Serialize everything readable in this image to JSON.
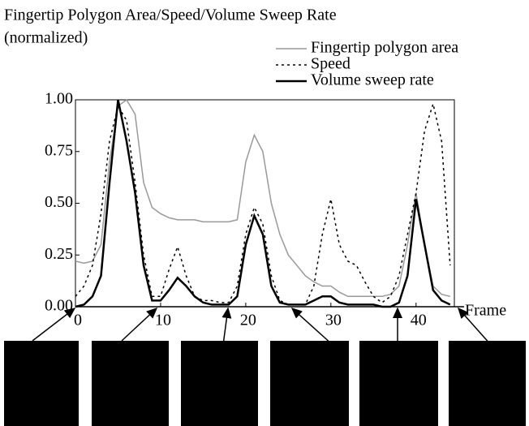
{
  "chart_data": {
    "type": "line",
    "title": "Fingertip Polygon Area/Speed/Volume Sweep Rate",
    "subtitle": "(normalized)",
    "x_label": "Frame",
    "x": [
      0,
      1,
      2,
      3,
      4,
      5,
      6,
      7,
      8,
      9,
      10,
      11,
      12,
      13,
      14,
      15,
      16,
      17,
      18,
      19,
      20,
      21,
      22,
      23,
      24,
      25,
      26,
      27,
      28,
      29,
      30,
      31,
      32,
      33,
      34,
      35,
      36,
      37,
      38,
      39,
      40,
      41,
      42,
      43,
      44
    ],
    "series": [
      {
        "name": "Fingertip polygon area",
        "color": "#999999",
        "style": "solid",
        "values": [
          0.22,
          0.21,
          0.22,
          0.3,
          0.7,
          0.97,
          1.0,
          0.93,
          0.6,
          0.48,
          0.45,
          0.43,
          0.42,
          0.42,
          0.42,
          0.41,
          0.41,
          0.41,
          0.41,
          0.42,
          0.7,
          0.83,
          0.75,
          0.5,
          0.35,
          0.25,
          0.2,
          0.15,
          0.12,
          0.1,
          0.1,
          0.07,
          0.05,
          0.05,
          0.05,
          0.05,
          0.05,
          0.06,
          0.1,
          0.3,
          0.55,
          0.3,
          0.1,
          0.06,
          0.05
        ]
      },
      {
        "name": "Speed",
        "color": "#000000",
        "style": "dotted",
        "values": [
          0.05,
          0.1,
          0.2,
          0.45,
          0.8,
          0.97,
          0.9,
          0.6,
          0.25,
          0.05,
          0.05,
          0.18,
          0.29,
          0.15,
          0.05,
          0.03,
          0.03,
          0.02,
          0.02,
          0.1,
          0.35,
          0.48,
          0.4,
          0.15,
          0.03,
          0.01,
          0.01,
          0.01,
          0.1,
          0.35,
          0.52,
          0.3,
          0.22,
          0.2,
          0.12,
          0.05,
          0.02,
          0.05,
          0.15,
          0.35,
          0.55,
          0.85,
          0.98,
          0.8,
          0.2
        ]
      },
      {
        "name": "Volume sweep rate",
        "color": "#000000",
        "style": "solid",
        "values": [
          0,
          0.01,
          0.05,
          0.15,
          0.6,
          1.0,
          0.8,
          0.55,
          0.2,
          0.03,
          0.03,
          0.08,
          0.14,
          0.1,
          0.05,
          0.02,
          0.01,
          0.01,
          0.01,
          0.05,
          0.3,
          0.44,
          0.35,
          0.1,
          0.02,
          0.01,
          0.01,
          0.01,
          0.03,
          0.05,
          0.05,
          0.02,
          0.01,
          0.01,
          0.01,
          0.01,
          0,
          0,
          0.02,
          0.15,
          0.52,
          0.3,
          0.08,
          0.03,
          0.01
        ]
      }
    ],
    "xlim": [
      0,
      44.5
    ],
    "xticks": [
      0,
      10,
      20,
      30,
      40
    ],
    "ylim": [
      0,
      1
    ],
    "yticks": [
      {
        "value": 0,
        "label": "0.00"
      },
      {
        "value": 0.25,
        "label": "0.25"
      },
      {
        "value": 0.5,
        "label": "0.50"
      },
      {
        "value": 0.75,
        "label": "0.75"
      },
      {
        "value": 1,
        "label": "1.00"
      }
    ]
  }
}
